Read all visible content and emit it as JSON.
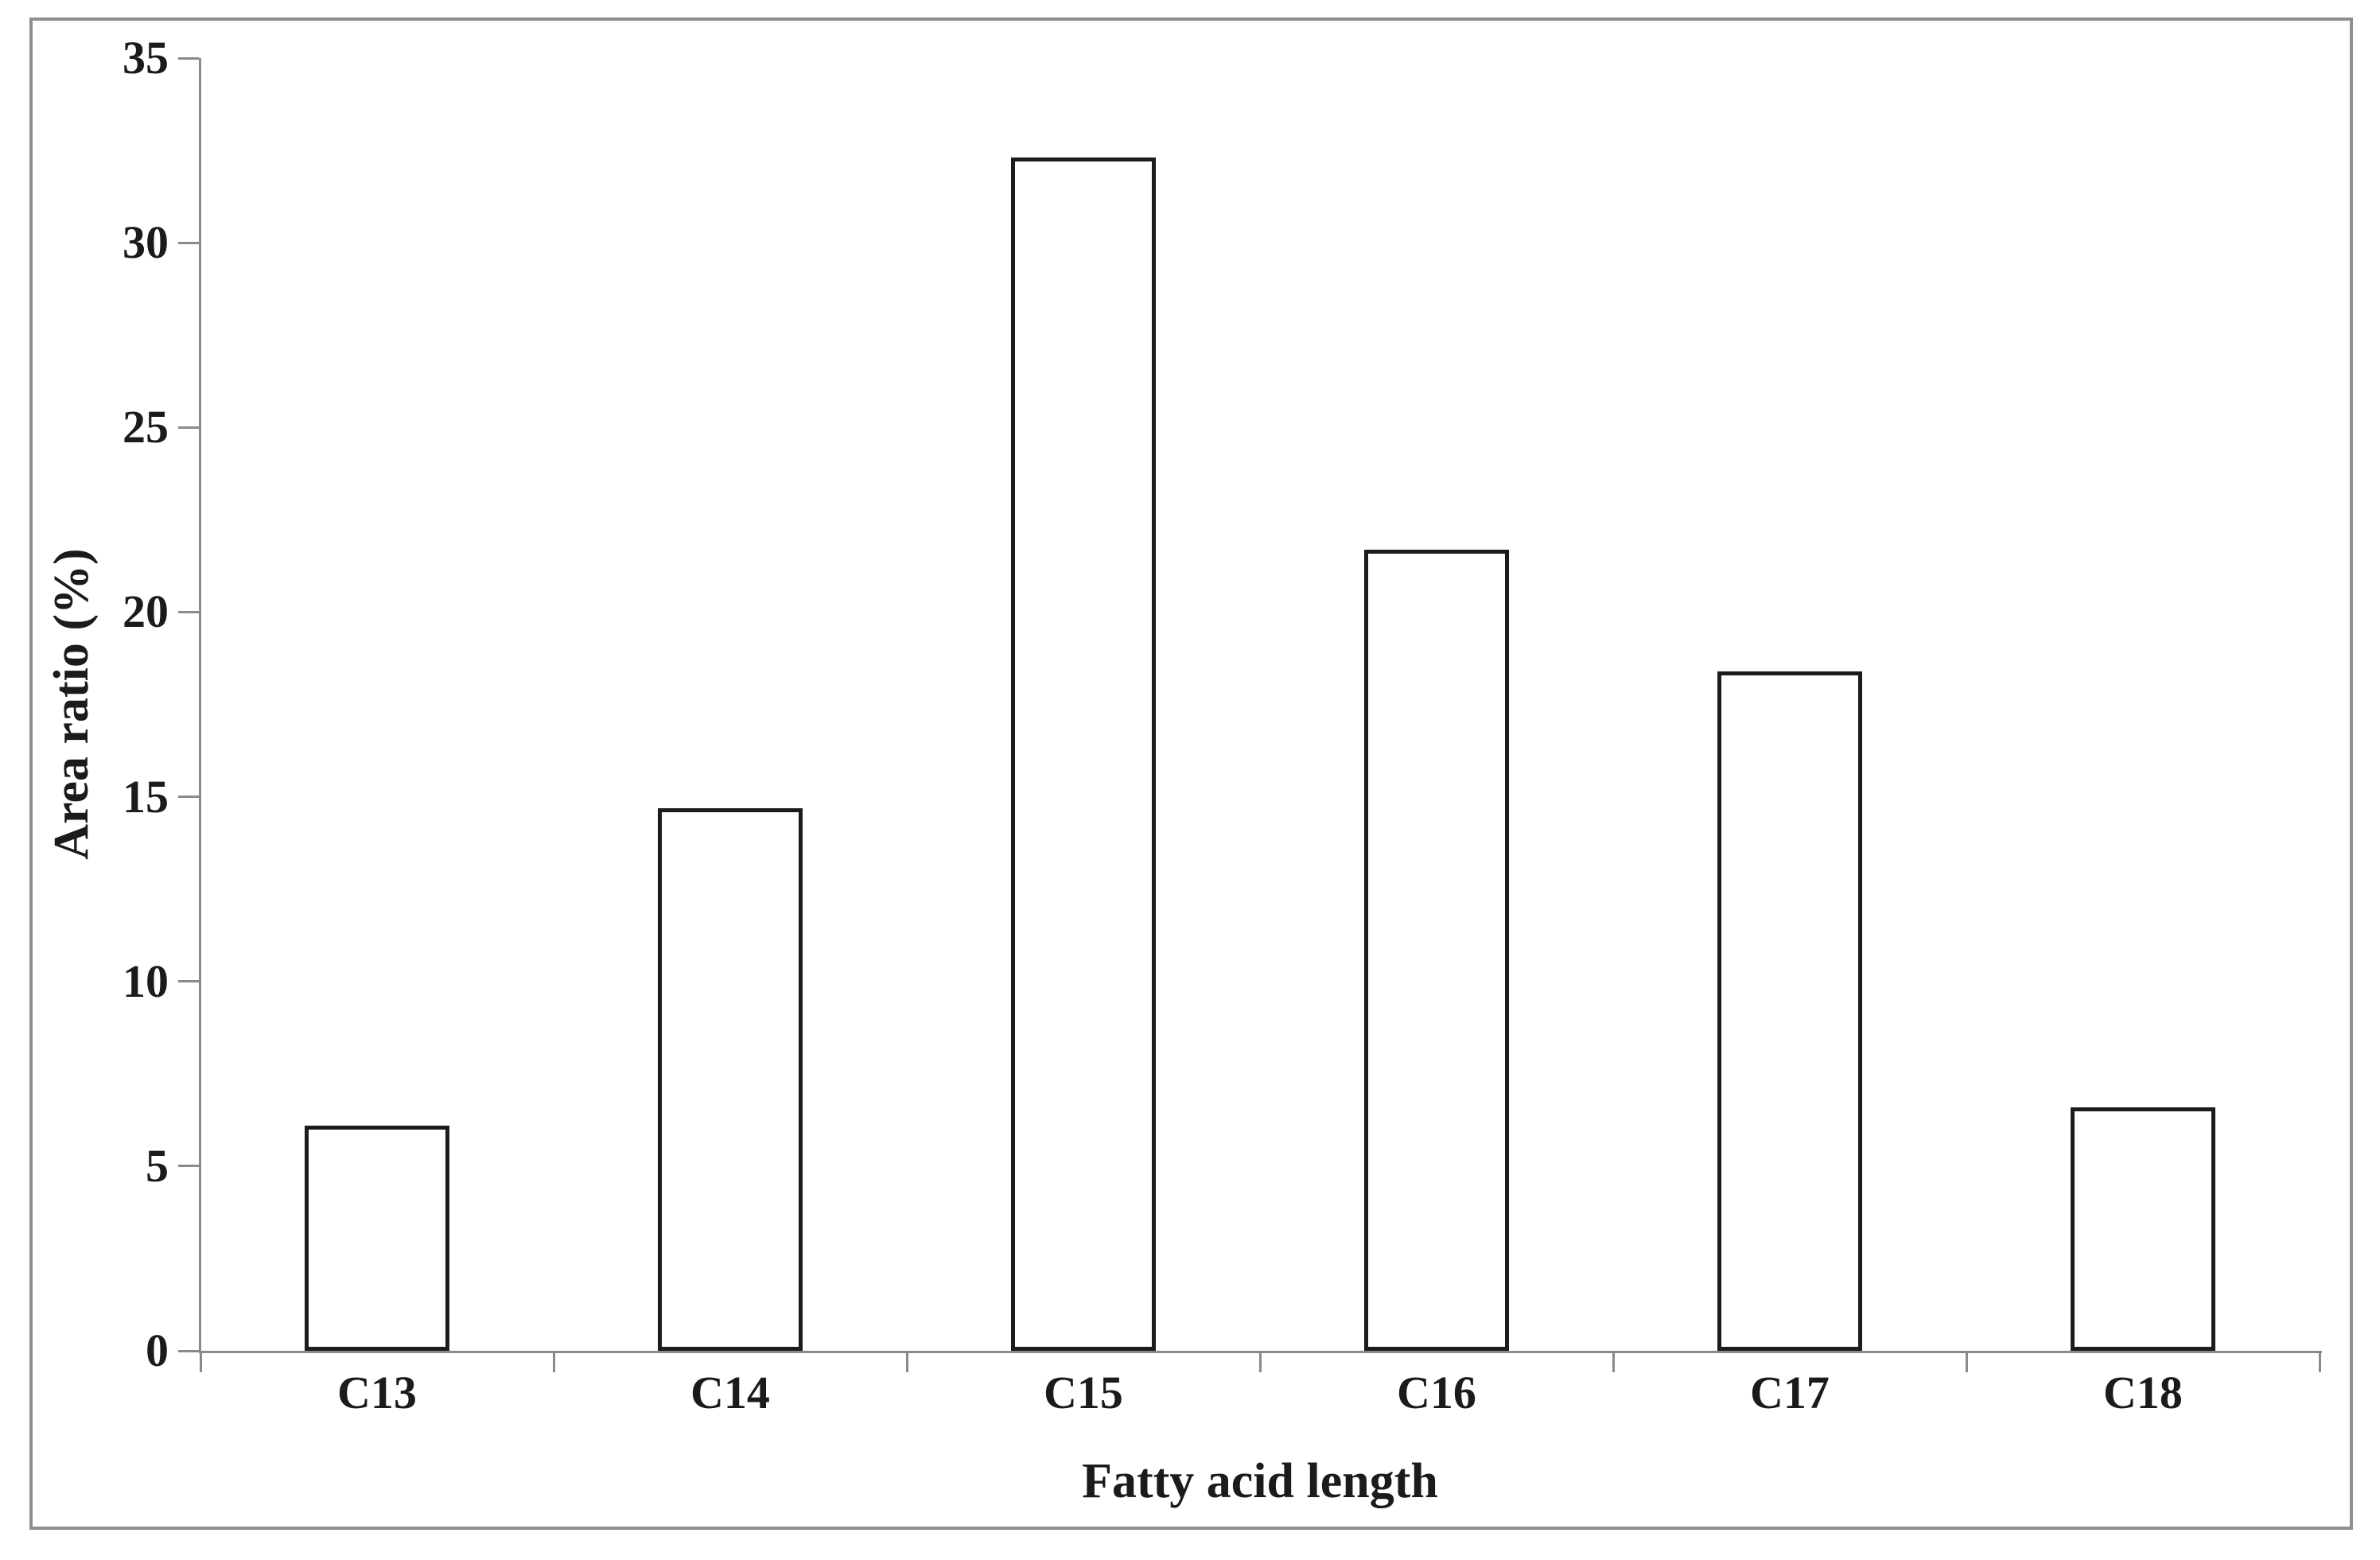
{
  "figure": {
    "background": "#ffffff",
    "frame_color": "#8f8f8f"
  },
  "chart_data": {
    "type": "bar",
    "title": "",
    "categories": [
      "C13",
      "C14",
      "C15",
      "C16",
      "C17",
      "C18"
    ],
    "values": [
      6.1,
      14.7,
      32.3,
      21.7,
      18.4,
      6.6
    ],
    "xlabel": "Fatty acid length",
    "ylabel": "Area ratio (%)",
    "ylim": [
      0,
      35
    ],
    "yticks": [
      0,
      5,
      10,
      15,
      20,
      25,
      30,
      35
    ],
    "grid": false,
    "legend": "none",
    "bar_fill": "#ffffff",
    "bar_border_color": "#1c1c1c",
    "axis_color": "#8a8a8a",
    "text_color": "#1b1b1b"
  }
}
